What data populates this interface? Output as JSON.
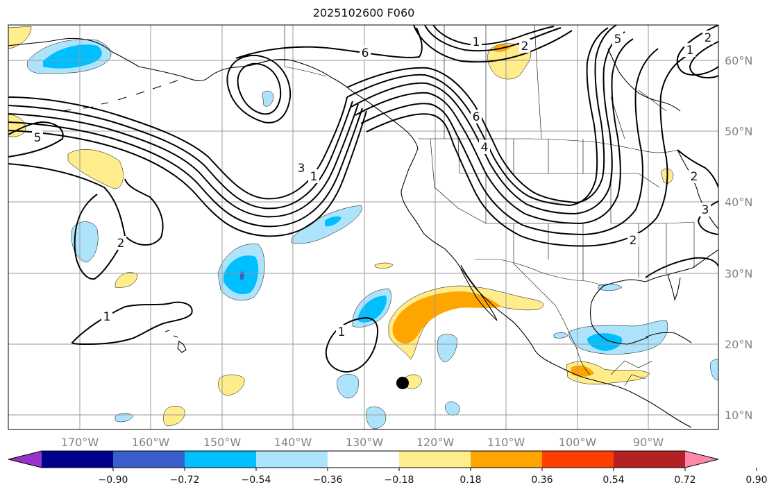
{
  "title": "2025102600 F060",
  "lat_labels": [
    "60°N",
    "50°N",
    "40°N",
    "30°N",
    "20°N",
    "10°N"
  ],
  "lon_labels": [
    "170°W",
    "160°W",
    "150°W",
    "140°W",
    "130°W",
    "120°W",
    "110°W",
    "100°W",
    "90°W"
  ],
  "colorbar": {
    "tick_labels": [
      "−0.90",
      "−0.72",
      "−0.54",
      "−0.36",
      "−0.18",
      "0.18",
      "0.36",
      "0.54",
      "0.72",
      "0.90"
    ],
    "colors": [
      "#9932cc",
      "#00008b",
      "#3a5fcd",
      "#00bfff",
      "#aee3fc",
      "#ffffff",
      "#ffec8b",
      "#ffa500",
      "#ff3e00",
      "#b22222",
      "#ff88aa"
    ]
  },
  "contour_labels": [
    {
      "id": "c6-north",
      "text": "6"
    },
    {
      "id": "c1-top",
      "text": "1"
    },
    {
      "id": "c5-top",
      "text": "5"
    },
    {
      "id": "c2-top",
      "text": "2"
    },
    {
      "id": "c1-rightcoast",
      "text": "1"
    },
    {
      "id": "c2-rightcoast",
      "text": "2"
    },
    {
      "id": "c5-left",
      "text": "5"
    },
    {
      "id": "c3-mid",
      "text": "3"
    },
    {
      "id": "c1-mid",
      "text": "1"
    },
    {
      "id": "c6-mid",
      "text": "6"
    },
    {
      "id": "c4-mid",
      "text": "4"
    },
    {
      "id": "c2-west",
      "text": "2"
    },
    {
      "id": "c1-southwest",
      "text": "1"
    },
    {
      "id": "c1-south",
      "text": "1"
    },
    {
      "id": "c2-east",
      "text": "2"
    },
    {
      "id": "c3-east",
      "text": "3"
    },
    {
      "id": "c2-greatlakes",
      "text": "2"
    }
  ],
  "colors": {
    "light_blue": "#aee3fc",
    "blue": "#00bfff",
    "dark_blue": "#3a5fcd",
    "yellow": "#ffec8b",
    "orange": "#ffa500",
    "gridline": "#9a9a9a",
    "axis_label": "#808080"
  },
  "marker": {
    "name": "black-dot"
  }
}
